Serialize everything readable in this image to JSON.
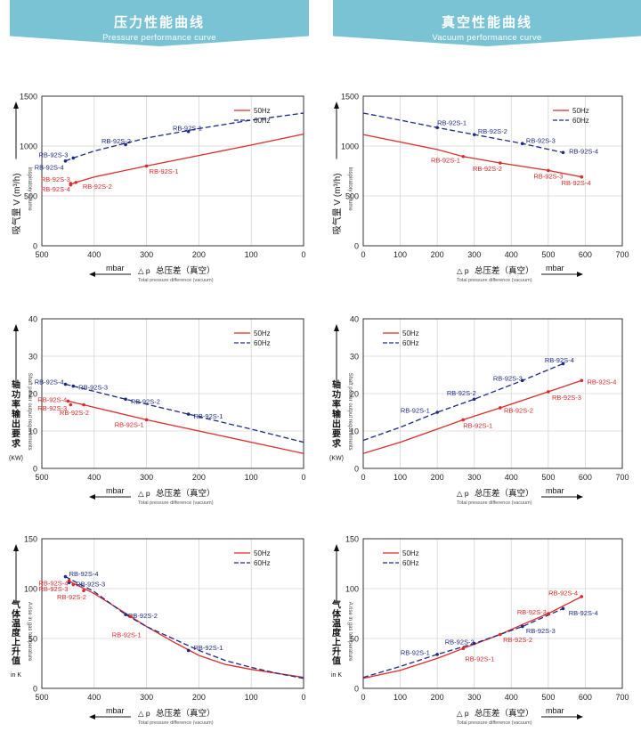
{
  "headers": {
    "left": {
      "cn": "压力性能曲线",
      "en": "Pressure performance curve"
    },
    "right": {
      "cn": "真空性能曲线",
      "en": "Vacuum performance curve"
    }
  },
  "legend": {
    "s50": "50Hz",
    "s60": "60Hz"
  },
  "axis_texts": {
    "unit": "mbar",
    "delta_p": "△ p",
    "xtitle_cn": "总压差（真空）",
    "xtitle_en": "Total pressure difference (vacuum)",
    "y_unit": {
      "volume": "V (m³/h)",
      "power": "(KW)",
      "temp": "in K"
    },
    "y_cn": {
      "volume": "吸气量",
      "power": "轴功率输出要求",
      "temp": "气体温度上升值"
    },
    "y_en": {
      "volume": "Inspiratory volume",
      "power": "Shaft power output requirements",
      "temp": "A rise in gas temperature"
    }
  },
  "colors": {
    "s50": "#dd2a2a",
    "s60": "#1c2a86",
    "axis": "#333333",
    "grid": "#d6d6d6",
    "banner": "#79c3d4"
  },
  "chart_data": [
    {
      "id": "pressure-volume",
      "type": "line",
      "panel": "left",
      "ykind": "volume",
      "xlim": [
        500,
        0
      ],
      "ylim": [
        0,
        1500
      ],
      "xticks": [
        500,
        400,
        300,
        200,
        100,
        0
      ],
      "yticks": [
        0,
        500,
        1000,
        1500
      ],
      "grid": true,
      "legend_position": "top-right",
      "series": [
        {
          "name": "50Hz",
          "key": "s50",
          "x": [
            445,
            435,
            400,
            300,
            200,
            100,
            0
          ],
          "y": [
            615,
            635,
            690,
            800,
            905,
            1010,
            1120
          ]
        },
        {
          "name": "60Hz",
          "key": "s60",
          "x": [
            455,
            440,
            400,
            300,
            200,
            100,
            0
          ],
          "y": [
            850,
            880,
            950,
            1080,
            1175,
            1260,
            1330
          ]
        }
      ],
      "points": [
        {
          "s": "s60",
          "x": 220,
          "y": 1145,
          "label": "RB-92S-1",
          "lx": 222,
          "ly": 1185,
          "anchor": "middle"
        },
        {
          "s": "s60",
          "x": 340,
          "y": 1015,
          "label": "RB-92S-2",
          "lx": 358,
          "ly": 1055,
          "anchor": "middle"
        },
        {
          "s": "s60",
          "x": 440,
          "y": 880,
          "label": "RB-92S-3",
          "lx": 450,
          "ly": 915,
          "anchor": "end"
        },
        {
          "s": "s60",
          "x": 455,
          "y": 850,
          "label": "RB-92S-4",
          "lx": 458,
          "ly": 790,
          "anchor": "end"
        },
        {
          "s": "s50",
          "x": 300,
          "y": 800,
          "label": "RB-92S-1",
          "lx": 295,
          "ly": 750,
          "anchor": "start"
        },
        {
          "s": "s50",
          "x": 435,
          "y": 635,
          "label": "RB-92S-2",
          "lx": 422,
          "ly": 600,
          "anchor": "start"
        },
        {
          "s": "s50",
          "x": 445,
          "y": 625,
          "label": "RB-92S-3",
          "lx": 446,
          "ly": 670,
          "anchor": "end"
        },
        {
          "s": "s50",
          "x": 445,
          "y": 610,
          "label": "RB-92S-4",
          "lx": 446,
          "ly": 570,
          "anchor": "end"
        }
      ]
    },
    {
      "id": "vacuum-volume",
      "type": "line",
      "panel": "right",
      "ykind": "volume",
      "xlim": [
        0,
        700
      ],
      "ylim": [
        0,
        1500
      ],
      "xticks": [
        0,
        100,
        200,
        300,
        400,
        500,
        600,
        700
      ],
      "yticks": [
        0,
        500,
        1000,
        1500
      ],
      "grid": true,
      "legend_position": "top-right",
      "series": [
        {
          "name": "50Hz",
          "key": "s50",
          "x": [
            0,
            100,
            200,
            270,
            370,
            500,
            590
          ],
          "y": [
            1115,
            1040,
            965,
            895,
            830,
            755,
            690
          ]
        },
        {
          "name": "60Hz",
          "key": "s60",
          "x": [
            0,
            100,
            200,
            300,
            430,
            540
          ],
          "y": [
            1330,
            1260,
            1185,
            1115,
            1025,
            935
          ]
        }
      ],
      "points": [
        {
          "s": "s60",
          "x": 200,
          "y": 1185,
          "label": "RB-92S-1",
          "lx": 200,
          "ly": 1235,
          "anchor": "start"
        },
        {
          "s": "s60",
          "x": 300,
          "y": 1115,
          "label": "RB-92S-2",
          "lx": 310,
          "ly": 1150,
          "anchor": "start"
        },
        {
          "s": "s60",
          "x": 430,
          "y": 1025,
          "label": "RB-92S-3",
          "lx": 440,
          "ly": 1060,
          "anchor": "start"
        },
        {
          "s": "s60",
          "x": 540,
          "y": 935,
          "label": "RB-92S-4",
          "lx": 556,
          "ly": 950,
          "anchor": "start"
        },
        {
          "s": "s50",
          "x": 270,
          "y": 895,
          "label": "RB-92S-1",
          "lx": 262,
          "ly": 860,
          "anchor": "end"
        },
        {
          "s": "s50",
          "x": 370,
          "y": 830,
          "label": "RB-92S-2",
          "lx": 375,
          "ly": 775,
          "anchor": "end"
        },
        {
          "s": "s50",
          "x": 500,
          "y": 755,
          "label": "RB-92S-3",
          "lx": 500,
          "ly": 700,
          "anchor": "middle"
        },
        {
          "s": "s50",
          "x": 590,
          "y": 690,
          "label": "RB-92S-4",
          "lx": 575,
          "ly": 635,
          "anchor": "middle"
        }
      ]
    },
    {
      "id": "pressure-power",
      "type": "line",
      "panel": "left",
      "ykind": "power",
      "xlim": [
        500,
        0
      ],
      "ylim": [
        0,
        40
      ],
      "xticks": [
        500,
        400,
        300,
        200,
        100,
        0
      ],
      "yticks": [
        0,
        10,
        20,
        30,
        40
      ],
      "grid": true,
      "legend_position": "top-right",
      "series": [
        {
          "name": "50Hz",
          "key": "s50",
          "x": [
            450,
            420,
            300,
            200,
            100,
            0
          ],
          "y": [
            18.0,
            17.0,
            13.0,
            10.0,
            7.0,
            4.0
          ]
        },
        {
          "name": "60Hz",
          "key": "s60",
          "x": [
            455,
            440,
            340,
            220,
            100,
            0
          ],
          "y": [
            22.5,
            22.0,
            18.5,
            14.5,
            10.5,
            7.0
          ]
        }
      ],
      "points": [
        {
          "s": "s60",
          "x": 455,
          "y": 22.5,
          "label": "RB-92S-4",
          "lx": 458,
          "ly": 23.2,
          "anchor": "end"
        },
        {
          "s": "s60",
          "x": 440,
          "y": 22.0,
          "label": "RB-92S-3",
          "lx": 430,
          "ly": 21.8,
          "anchor": "start"
        },
        {
          "s": "s60",
          "x": 340,
          "y": 18.5,
          "label": "RB-92S-2",
          "lx": 330,
          "ly": 18.0,
          "anchor": "start"
        },
        {
          "s": "s60",
          "x": 220,
          "y": 14.5,
          "label": "RB-92S-1",
          "lx": 210,
          "ly": 14.0,
          "anchor": "start"
        },
        {
          "s": "s50",
          "x": 450,
          "y": 18.0,
          "label": "RB-92S-4",
          "lx": 452,
          "ly": 18.5,
          "anchor": "end"
        },
        {
          "s": "s50",
          "x": 445,
          "y": 17.0,
          "label": "RB-92S-3",
          "lx": 452,
          "ly": 16.2,
          "anchor": "end"
        },
        {
          "s": "s50",
          "x": 420,
          "y": 17.0,
          "label": "RB-92S-2",
          "lx": 410,
          "ly": 15.0,
          "anchor": "end"
        },
        {
          "s": "s50",
          "x": 300,
          "y": 13.0,
          "label": "RB-92S-1",
          "lx": 305,
          "ly": 11.8,
          "anchor": "end"
        }
      ]
    },
    {
      "id": "vacuum-power",
      "type": "line",
      "panel": "right",
      "ykind": "power",
      "xlim": [
        0,
        700
      ],
      "ylim": [
        0,
        40
      ],
      "xticks": [
        0,
        100,
        200,
        300,
        400,
        500,
        600,
        700
      ],
      "yticks": [
        0,
        10,
        20,
        30,
        40
      ],
      "grid": true,
      "legend_position": "top-left",
      "series": [
        {
          "name": "50Hz",
          "key": "s50",
          "x": [
            0,
            100,
            200,
            270,
            370,
            500,
            590
          ],
          "y": [
            4.0,
            7.0,
            10.5,
            13.0,
            16.2,
            20.5,
            23.5
          ]
        },
        {
          "name": "60Hz",
          "key": "s60",
          "x": [
            0,
            100,
            200,
            300,
            430,
            540
          ],
          "y": [
            7.5,
            11.0,
            15.0,
            18.5,
            23.5,
            28.0
          ]
        }
      ],
      "points": [
        {
          "s": "s60",
          "x": 200,
          "y": 15.0,
          "label": "RB-92S-1",
          "lx": 180,
          "ly": 15.6,
          "anchor": "end"
        },
        {
          "s": "s60",
          "x": 300,
          "y": 18.5,
          "label": "RB-92S-2",
          "lx": 305,
          "ly": 20.2,
          "anchor": "end"
        },
        {
          "s": "s60",
          "x": 430,
          "y": 23.5,
          "label": "RB-92S-3",
          "lx": 430,
          "ly": 24.2,
          "anchor": "end"
        },
        {
          "s": "s60",
          "x": 540,
          "y": 28.0,
          "label": "RB-92S-4",
          "lx": 530,
          "ly": 29.0,
          "anchor": "middle"
        },
        {
          "s": "s50",
          "x": 270,
          "y": 13.0,
          "label": "RB-92S-1",
          "lx": 270,
          "ly": 11.5,
          "anchor": "start"
        },
        {
          "s": "s50",
          "x": 370,
          "y": 16.2,
          "label": "RB-92S-2",
          "lx": 380,
          "ly": 15.6,
          "anchor": "start"
        },
        {
          "s": "s50",
          "x": 500,
          "y": 20.5,
          "label": "RB-92S-3",
          "lx": 510,
          "ly": 19.0,
          "anchor": "start"
        },
        {
          "s": "s50",
          "x": 590,
          "y": 23.5,
          "label": "RB-92S-4",
          "lx": 605,
          "ly": 23.2,
          "anchor": "start"
        }
      ]
    },
    {
      "id": "pressure-temperature",
      "type": "line",
      "panel": "left",
      "ykind": "temp",
      "xlim": [
        500,
        0
      ],
      "ylim": [
        0,
        150
      ],
      "xticks": [
        500,
        400,
        300,
        200,
        100,
        0
      ],
      "yticks": [
        0,
        50,
        100,
        150
      ],
      "grid": true,
      "legend_position": "top-right",
      "series": [
        {
          "name": "50Hz",
          "key": "s50",
          "x": [
            450,
            400,
            330,
            300,
            250,
            200,
            150,
            100,
            50,
            0
          ],
          "y": [
            108,
            95,
            72,
            62,
            47,
            33,
            24,
            19,
            15,
            11
          ]
        },
        {
          "name": "60Hz",
          "key": "s60",
          "x": [
            455,
            400,
            340,
            300,
            250,
            200,
            150,
            100,
            50,
            0
          ],
          "y": [
            112,
            97,
            74,
            62,
            50,
            38,
            28,
            21,
            15,
            10
          ]
        }
      ],
      "points": [
        {
          "s": "s60",
          "x": 455,
          "y": 112,
          "label": "RB-92S-4",
          "lx": 448,
          "ly": 115,
          "anchor": "start"
        },
        {
          "s": "s60",
          "x": 448,
          "y": 106,
          "label": "RB-92S-3",
          "lx": 435,
          "ly": 105,
          "anchor": "start"
        },
        {
          "s": "s60",
          "x": 340,
          "y": 74,
          "label": "RB-92S-2",
          "lx": 335,
          "ly": 73,
          "anchor": "start"
        },
        {
          "s": "s60",
          "x": 220,
          "y": 38,
          "label": "RB-92S-1",
          "lx": 210,
          "ly": 41,
          "anchor": "start"
        },
        {
          "s": "s50",
          "x": 448,
          "y": 108,
          "label": "RB-92S-4",
          "lx": 450,
          "ly": 106,
          "anchor": "end"
        },
        {
          "s": "s50",
          "x": 440,
          "y": 104,
          "label": "RB-92S-3",
          "lx": 450,
          "ly": 100,
          "anchor": "end"
        },
        {
          "s": "s50",
          "x": 420,
          "y": 98,
          "label": "RB-92S-2",
          "lx": 415,
          "ly": 92,
          "anchor": "end"
        },
        {
          "s": "s50",
          "x": 330,
          "y": 72,
          "label": "RB-92S-1",
          "lx": 310,
          "ly": 54,
          "anchor": "end"
        }
      ]
    },
    {
      "id": "vacuum-temperature",
      "type": "line",
      "panel": "right",
      "ykind": "temp",
      "xlim": [
        0,
        700
      ],
      "ylim": [
        0,
        150
      ],
      "xticks": [
        0,
        100,
        200,
        300,
        400,
        500,
        600,
        700
      ],
      "yticks": [
        0,
        50,
        100,
        150
      ],
      "grid": true,
      "legend_position": "top-left",
      "series": [
        {
          "name": "50Hz",
          "key": "s50",
          "x": [
            0,
            100,
            200,
            270,
            370,
            430,
            500,
            590
          ],
          "y": [
            10,
            18,
            30,
            40,
            54,
            64,
            75,
            92
          ]
        },
        {
          "name": "60Hz",
          "key": "s60",
          "x": [
            0,
            100,
            200,
            300,
            430,
            540
          ],
          "y": [
            11,
            22,
            34,
            45,
            62,
            80
          ]
        }
      ],
      "points": [
        {
          "s": "s60",
          "x": 200,
          "y": 34,
          "label": "RB-92S-1",
          "lx": 180,
          "ly": 36,
          "anchor": "end"
        },
        {
          "s": "s60",
          "x": 300,
          "y": 45,
          "label": "RB-92S-2",
          "lx": 300,
          "ly": 47,
          "anchor": "end"
        },
        {
          "s": "s60",
          "x": 430,
          "y": 62,
          "label": "RB-92S-3",
          "lx": 440,
          "ly": 58,
          "anchor": "start"
        },
        {
          "s": "s60",
          "x": 540,
          "y": 80,
          "label": "RB-92S-4",
          "lx": 555,
          "ly": 76,
          "anchor": "start"
        },
        {
          "s": "s50",
          "x": 270,
          "y": 40,
          "label": "RB-92S-1",
          "lx": 275,
          "ly": 30,
          "anchor": "start"
        },
        {
          "s": "s50",
          "x": 370,
          "y": 54,
          "label": "RB-92S-2",
          "lx": 378,
          "ly": 49,
          "anchor": "start"
        },
        {
          "s": "s50",
          "x": 500,
          "y": 75,
          "label": "RB-92S-3",
          "lx": 495,
          "ly": 77,
          "anchor": "end"
        },
        {
          "s": "s50",
          "x": 590,
          "y": 92,
          "label": "RB-92S-4",
          "lx": 580,
          "ly": 96,
          "anchor": "end"
        }
      ]
    }
  ]
}
